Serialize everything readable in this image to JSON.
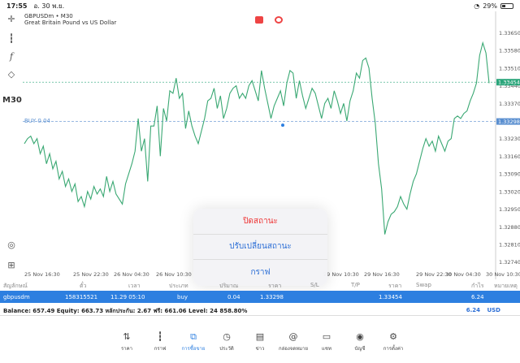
{
  "status_bar": {
    "time": "17:55",
    "date": "อ. 30 พ.ย.",
    "battery": "29%"
  },
  "chart": {
    "symbol": "GBPUSDm • M30",
    "description": "Great Britain Pound vs US Dollar",
    "timeframe": "M30",
    "buy_label": "BUY 0.04",
    "current_price": "1.33454",
    "buy_price": "1.33298",
    "colors": {
      "line": "#3aa873",
      "current": "#2aa57a",
      "buy": "#2d7fe0"
    }
  },
  "chart_data": {
    "type": "line",
    "x_ticks": [
      "25 Nov 16:30",
      "25 Nov 22:30",
      "26 Nov 04:30",
      "26 Nov 10:30",
      "29 Nov 10:30",
      "29 Nov 16:30",
      "29 Nov 22:30",
      "30 Nov 04:30",
      "30 Nov 10:30"
    ],
    "y_ticks": [
      "1.33650",
      "1.33580",
      "1.33510",
      "1.33440",
      "1.33370",
      "1.33300",
      "1.33230",
      "1.33160",
      "1.33090",
      "1.33020",
      "1.32950",
      "1.32880",
      "1.32810",
      "1.32740"
    ],
    "ylim": [
      1.3271,
      1.3369
    ],
    "values": [
      1.3321,
      1.3323,
      1.3324,
      1.3321,
      1.3323,
      1.3317,
      1.332,
      1.3313,
      1.3317,
      1.3311,
      1.3314,
      1.3307,
      1.331,
      1.3304,
      1.3307,
      1.3302,
      1.3305,
      1.3298,
      1.33,
      1.3296,
      1.3302,
      1.3299,
      1.3304,
      1.3301,
      1.3303,
      1.33,
      1.3308,
      1.3302,
      1.3306,
      1.3301,
      1.3299,
      1.3297,
      1.3305,
      1.3309,
      1.3313,
      1.3318,
      1.3331,
      1.3318,
      1.3323,
      1.3306,
      1.3328,
      1.3328,
      1.3336,
      1.3316,
      1.3335,
      1.333,
      1.3342,
      1.3341,
      1.3347,
      1.3339,
      1.3341,
      1.3327,
      1.3334,
      1.3328,
      1.3324,
      1.3321,
      1.3326,
      1.3331,
      1.3338,
      1.3339,
      1.3343,
      1.3335,
      1.334,
      1.3331,
      1.3335,
      1.3341,
      1.3343,
      1.3344,
      1.3339,
      1.3341,
      1.3339,
      1.3344,
      1.3346,
      1.3342,
      1.3338,
      1.335,
      1.3343,
      1.3337,
      1.3331,
      1.3336,
      1.3339,
      1.3342,
      1.3336,
      1.3345,
      1.335,
      1.3349,
      1.3339,
      1.3346,
      1.334,
      1.3335,
      1.3339,
      1.3343,
      1.3341,
      1.3336,
      1.3331,
      1.3337,
      1.3339,
      1.3335,
      1.3342,
      1.3338,
      1.3333,
      1.3337,
      1.333,
      1.3338,
      1.3342,
      1.3349,
      1.3347,
      1.3354,
      1.3355,
      1.3351,
      1.3339,
      1.3329,
      1.3313,
      1.3303,
      1.3285,
      1.329,
      1.3293,
      1.3294,
      1.3296,
      1.33,
      1.3297,
      1.3295,
      1.3301,
      1.3306,
      1.3309,
      1.3314,
      1.3319,
      1.3323,
      1.332,
      1.3322,
      1.3318,
      1.3324,
      1.3321,
      1.3318,
      1.3322,
      1.3323,
      1.3331,
      1.3332,
      1.3331,
      1.3333,
      1.3334,
      1.3338,
      1.3341,
      1.3345,
      1.3356,
      1.3361,
      1.3357,
      1.3345
    ]
  },
  "popup": {
    "close_position": "ปิดสถานะ",
    "modify_position": "ปรับเปลี่ยนสถานะ",
    "chart": "กราฟ"
  },
  "table": {
    "headers": [
      "สัญลักษณ์",
      "ตั๋ว",
      "เวลา",
      "ประเภท",
      "ปริมาณ",
      "ราคา",
      "S/L",
      "T/P",
      "ราคา",
      "Swap",
      "กำไร",
      "หมายเหตุ"
    ],
    "row": {
      "symbol": "gbpusdm",
      "ticket": "158315521",
      "time": "11.29 05:10",
      "type": "buy",
      "volume": "0.04",
      "open_price": "1.33298",
      "price": "1.33454",
      "profit": "6.24"
    }
  },
  "balance": {
    "text": "Balance: 657.49 Equity: 663.73 หลักประกัน: 2.67 ฟรี: 661.06 Level: 24 858.80%",
    "total": "6.24",
    "currency": "USD"
  },
  "nav": {
    "items": [
      {
        "label": "ราคา",
        "icon": "quotes-icon"
      },
      {
        "label": "กราฟ",
        "icon": "chart-icon"
      },
      {
        "label": "การซื้อขาย",
        "icon": "trade-icon"
      },
      {
        "label": "ประวัติ",
        "icon": "history-icon"
      },
      {
        "label": "ข่าว",
        "icon": "news-icon"
      },
      {
        "label": "กล่องจดหมาย",
        "icon": "mailbox-icon"
      },
      {
        "label": "แชท",
        "icon": "chat-icon"
      },
      {
        "label": "บัญชี",
        "icon": "account-icon"
      },
      {
        "label": "การตั้งค่า",
        "icon": "settings-icon"
      }
    ]
  }
}
